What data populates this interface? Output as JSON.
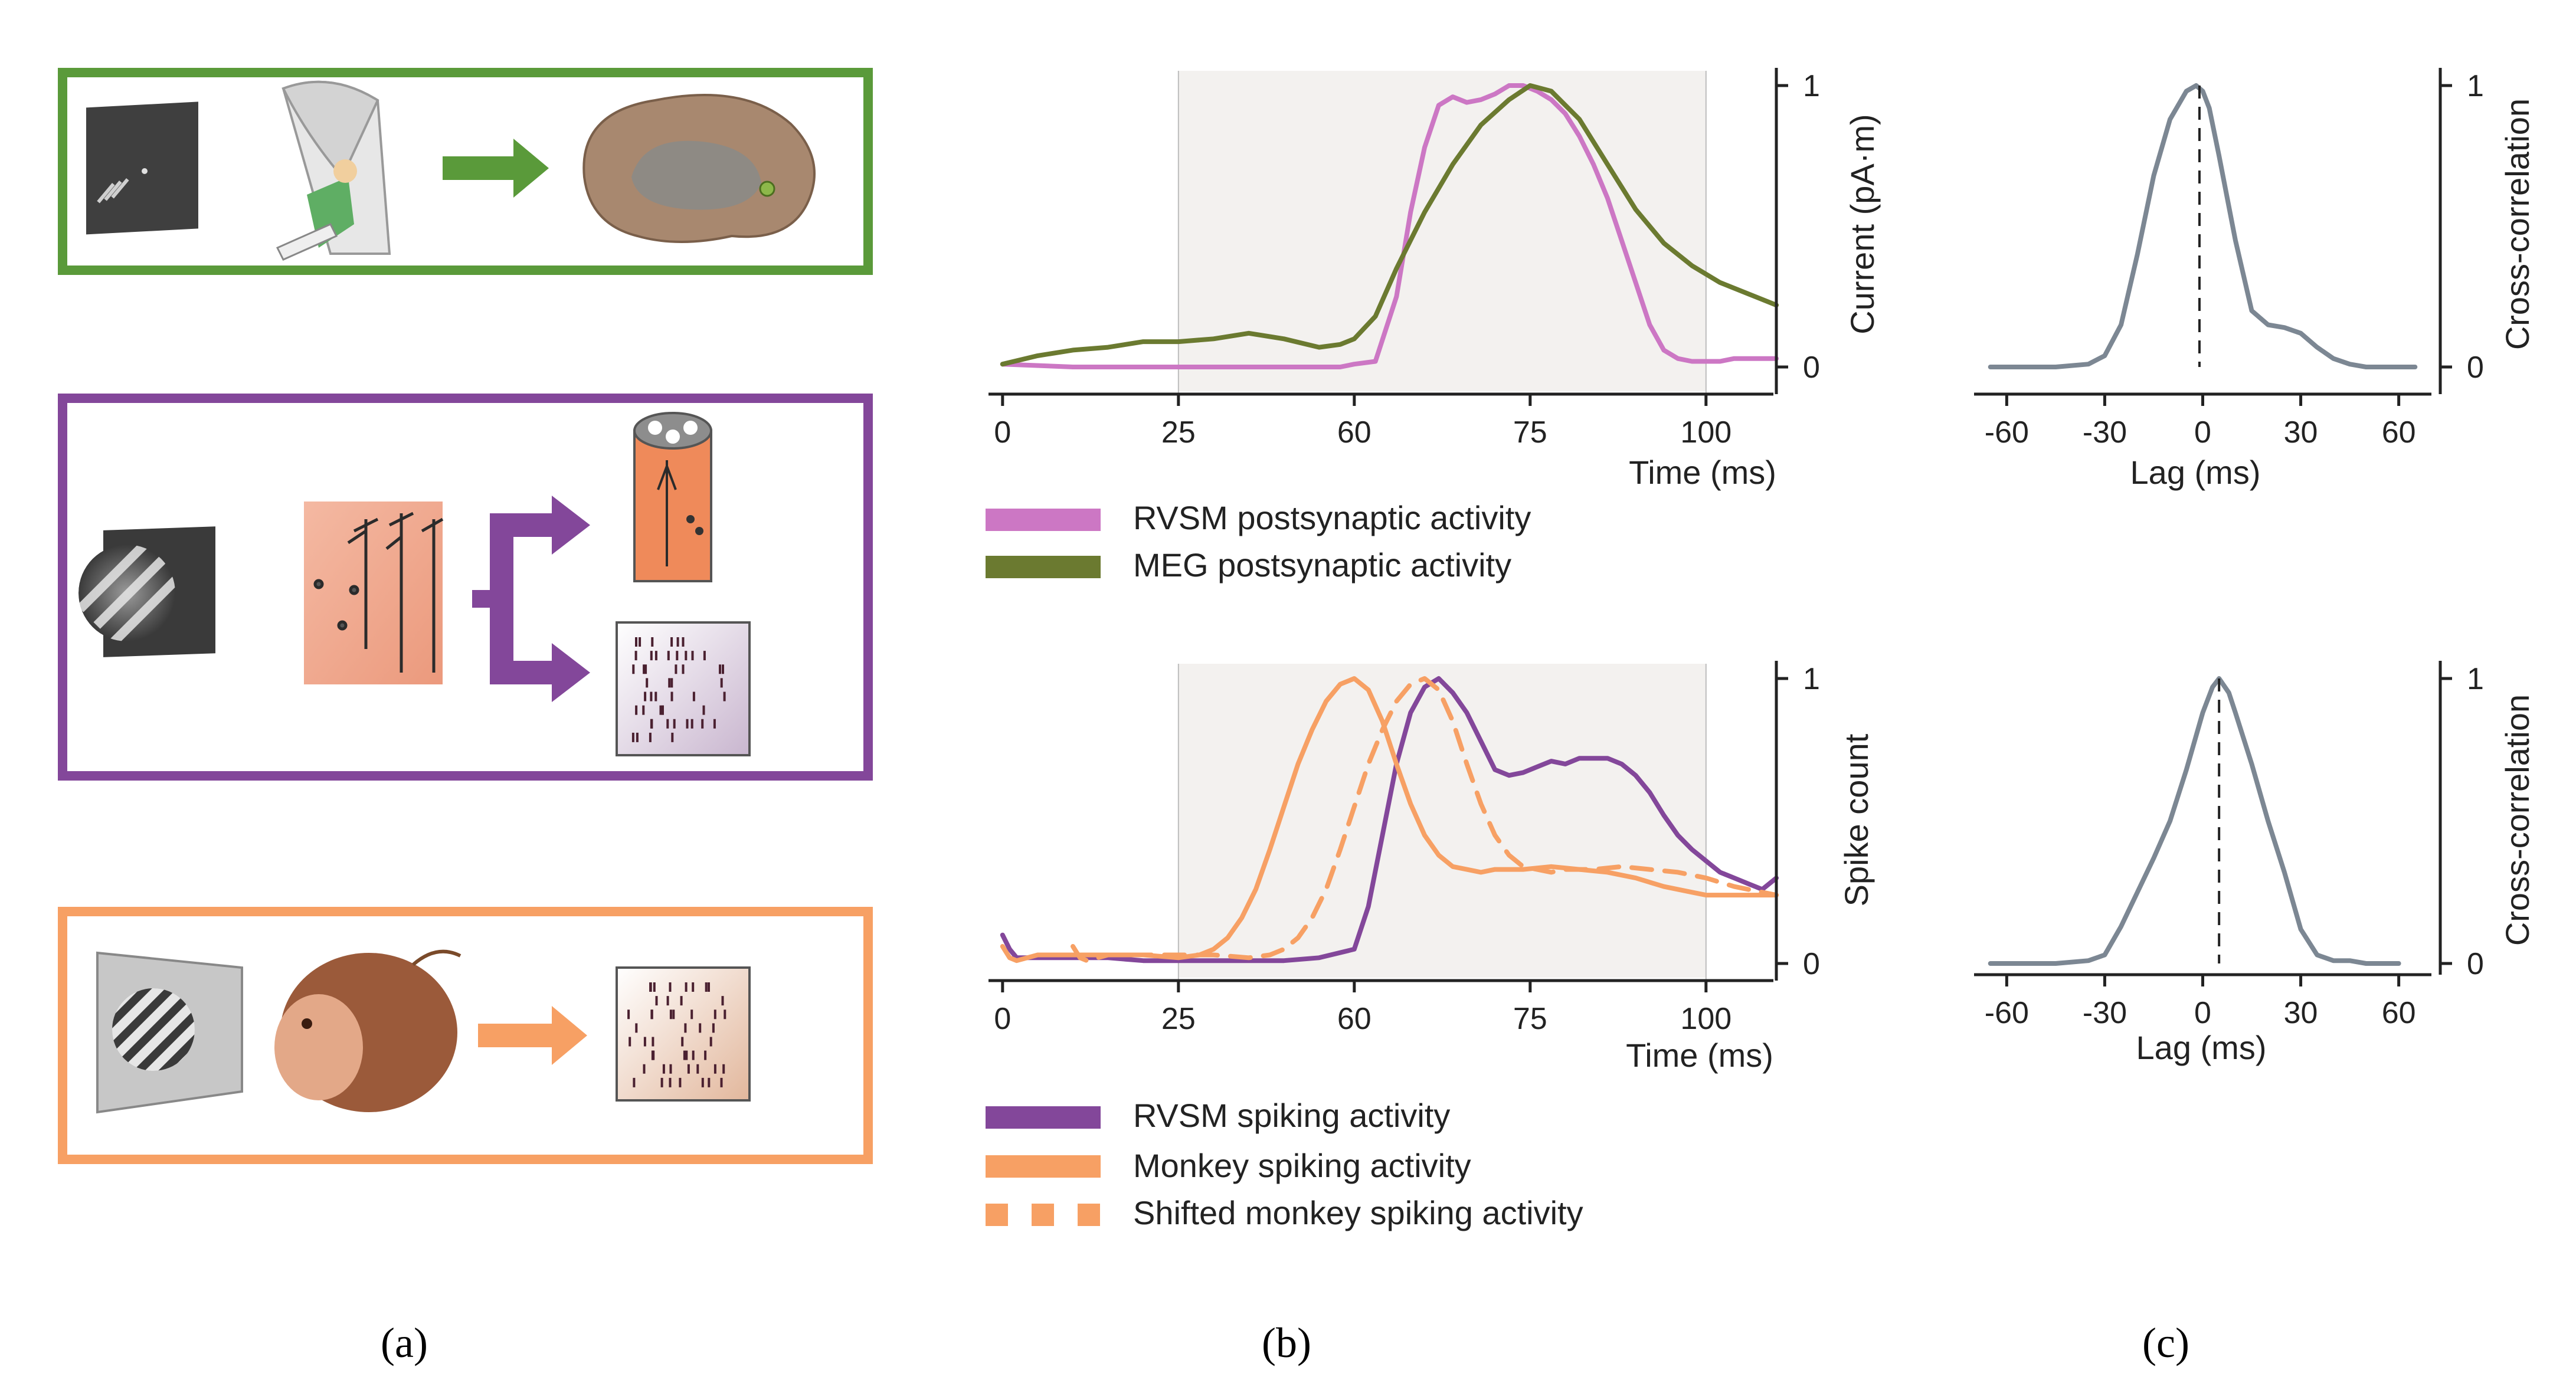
{
  "panel_labels": [
    "(a)",
    "(b)",
    "(c)"
  ],
  "colors": {
    "green": "#5a9a3a",
    "purple": "#83479a",
    "orange": "#f7a064",
    "pink": "#cc77c4",
    "olive": "#6b7a30",
    "gray_line": "#7c8793",
    "window_shade": "#f3f1ef"
  },
  "chart_data": [
    {
      "type": "line",
      "xlabel": "Time (ms)",
      "ylabel": "Current (pA·m)",
      "xticks": [
        "0",
        "25",
        "60",
        "75",
        "100"
      ],
      "yticks": [
        "0",
        "1"
      ],
      "xlim": [
        0,
        110
      ],
      "ylim": [
        0,
        1
      ],
      "shaded_window": [
        25,
        100
      ],
      "legend": [
        "RVSM postsynaptic activity",
        "MEG postsynaptic activity"
      ],
      "series": [
        {
          "name": "RVSM postsynaptic activity",
          "color": "#cc77c4",
          "style": "solid",
          "x": [
            0,
            10,
            20,
            30,
            40,
            45,
            48,
            50,
            53,
            56,
            58,
            60,
            62,
            64,
            66,
            68,
            70,
            72,
            74,
            76,
            78,
            80,
            82,
            84,
            86,
            88,
            90,
            92,
            94,
            96,
            98,
            100,
            102,
            104,
            106,
            108,
            110
          ],
          "y": [
            0.01,
            0.0,
            0.0,
            0.0,
            0.0,
            0.0,
            0.0,
            0.01,
            0.02,
            0.25,
            0.55,
            0.78,
            0.93,
            0.96,
            0.94,
            0.95,
            0.97,
            1.0,
            1.0,
            0.98,
            0.95,
            0.9,
            0.82,
            0.72,
            0.6,
            0.45,
            0.3,
            0.15,
            0.06,
            0.03,
            0.02,
            0.02,
            0.02,
            0.03,
            0.03,
            0.03,
            0.03
          ]
        },
        {
          "name": "MEG postsynaptic activity",
          "color": "#6b7a30",
          "style": "solid",
          "x": [
            0,
            5,
            10,
            15,
            20,
            25,
            30,
            35,
            40,
            45,
            48,
            50,
            53,
            56,
            60,
            64,
            68,
            72,
            75,
            78,
            82,
            86,
            90,
            94,
            98,
            102,
            106,
            110
          ],
          "y": [
            0.01,
            0.04,
            0.06,
            0.07,
            0.09,
            0.09,
            0.1,
            0.12,
            0.1,
            0.07,
            0.08,
            0.1,
            0.18,
            0.35,
            0.55,
            0.72,
            0.86,
            0.95,
            1.0,
            0.98,
            0.88,
            0.72,
            0.56,
            0.44,
            0.36,
            0.3,
            0.26,
            0.22
          ]
        }
      ]
    },
    {
      "type": "line",
      "xlabel": "Time (ms)",
      "ylabel": "Spike count",
      "xticks": [
        "0",
        "25",
        "60",
        "75",
        "100"
      ],
      "yticks": [
        "0",
        "1"
      ],
      "xlim": [
        0,
        110
      ],
      "ylim": [
        0,
        1
      ],
      "shaded_window": [
        25,
        100
      ],
      "legend": [
        "RVSM spiking activity",
        "Monkey spiking activity",
        "Shifted monkey spiking activity"
      ],
      "series": [
        {
          "name": "RVSM spiking activity",
          "color": "#83479a",
          "style": "solid",
          "x": [
            0,
            1,
            2,
            5,
            10,
            15,
            20,
            25,
            30,
            35,
            40,
            45,
            50,
            52,
            54,
            56,
            58,
            60,
            62,
            64,
            66,
            68,
            70,
            72,
            74,
            76,
            78,
            80,
            82,
            84,
            86,
            88,
            90,
            92,
            94,
            96,
            98,
            100,
            102,
            104,
            106,
            108,
            110
          ],
          "y": [
            0.1,
            0.05,
            0.02,
            0.02,
            0.02,
            0.02,
            0.01,
            0.01,
            0.01,
            0.01,
            0.01,
            0.02,
            0.05,
            0.2,
            0.45,
            0.7,
            0.88,
            0.97,
            1.0,
            0.95,
            0.88,
            0.78,
            0.68,
            0.66,
            0.67,
            0.69,
            0.71,
            0.7,
            0.72,
            0.72,
            0.72,
            0.7,
            0.66,
            0.6,
            0.52,
            0.45,
            0.4,
            0.36,
            0.32,
            0.3,
            0.28,
            0.26,
            0.3
          ]
        },
        {
          "name": "Monkey spiking activity",
          "color": "#f7a064",
          "style": "solid",
          "x": [
            0,
            1,
            2,
            5,
            10,
            15,
            20,
            25,
            28,
            30,
            32,
            34,
            36,
            38,
            40,
            42,
            44,
            46,
            48,
            50,
            52,
            54,
            56,
            58,
            60,
            62,
            64,
            66,
            68,
            70,
            74,
            78,
            82,
            86,
            90,
            94,
            98,
            100,
            104,
            108,
            110
          ],
          "y": [
            0.06,
            0.02,
            0.01,
            0.03,
            0.03,
            0.03,
            0.03,
            0.02,
            0.03,
            0.05,
            0.09,
            0.16,
            0.26,
            0.4,
            0.55,
            0.7,
            0.82,
            0.92,
            0.98,
            1.0,
            0.96,
            0.85,
            0.7,
            0.56,
            0.45,
            0.38,
            0.34,
            0.33,
            0.32,
            0.33,
            0.33,
            0.34,
            0.33,
            0.32,
            0.3,
            0.27,
            0.25,
            0.24,
            0.24,
            0.24,
            0.24
          ]
        },
        {
          "name": "Shifted monkey spiking activity",
          "color": "#f7a064",
          "style": "dashed",
          "x": [
            10,
            11,
            12,
            15,
            20,
            25,
            30,
            35,
            38,
            40,
            42,
            44,
            46,
            48,
            50,
            52,
            54,
            56,
            58,
            60,
            62,
            64,
            66,
            68,
            70,
            72,
            74,
            76,
            78,
            80,
            84,
            88,
            92,
            96,
            100,
            104,
            108,
            110
          ],
          "y": [
            0.06,
            0.02,
            0.01,
            0.03,
            0.03,
            0.03,
            0.03,
            0.02,
            0.03,
            0.05,
            0.09,
            0.16,
            0.26,
            0.4,
            0.55,
            0.7,
            0.82,
            0.92,
            0.98,
            1.0,
            0.96,
            0.85,
            0.7,
            0.56,
            0.45,
            0.38,
            0.34,
            0.33,
            0.32,
            0.33,
            0.33,
            0.34,
            0.33,
            0.32,
            0.3,
            0.27,
            0.25,
            0.24
          ]
        }
      ]
    },
    {
      "type": "line",
      "xlabel": "Lag (ms)",
      "ylabel": "Cross-correlation",
      "xticks": [
        "-60",
        "-30",
        "0",
        "30",
        "60"
      ],
      "yticks": [
        "0",
        "1"
      ],
      "xlim": [
        -65,
        65
      ],
      "ylim": [
        0,
        1
      ],
      "peak_lag": -1,
      "series": [
        {
          "name": "",
          "color": "#7c8793",
          "style": "solid",
          "x": [
            -65,
            -55,
            -45,
            -35,
            -30,
            -25,
            -20,
            -15,
            -10,
            -5,
            -2,
            0,
            2,
            5,
            10,
            15,
            20,
            25,
            30,
            35,
            40,
            45,
            50,
            55,
            60,
            65
          ],
          "y": [
            0.0,
            0.0,
            0.0,
            0.01,
            0.04,
            0.15,
            0.4,
            0.68,
            0.88,
            0.98,
            1.0,
            0.98,
            0.92,
            0.75,
            0.45,
            0.2,
            0.15,
            0.14,
            0.12,
            0.07,
            0.03,
            0.01,
            0.0,
            0.0,
            0.0,
            0.0
          ]
        }
      ]
    },
    {
      "type": "line",
      "xlabel": "Lag (ms)",
      "ylabel": "Cross-correlation",
      "xticks": [
        "-60",
        "-30",
        "0",
        "30",
        "60"
      ],
      "yticks": [
        "0",
        "1"
      ],
      "xlim": [
        -65,
        65
      ],
      "ylim": [
        0,
        1
      ],
      "peak_lag": 5,
      "series": [
        {
          "name": "",
          "color": "#7c8793",
          "style": "solid",
          "x": [
            -65,
            -55,
            -45,
            -35,
            -30,
            -25,
            -20,
            -15,
            -10,
            -5,
            0,
            3,
            5,
            8,
            10,
            15,
            20,
            25,
            30,
            35,
            40,
            45,
            50,
            55,
            60
          ],
          "y": [
            0.0,
            0.0,
            0.0,
            0.01,
            0.03,
            0.13,
            0.25,
            0.37,
            0.5,
            0.68,
            0.88,
            0.97,
            1.0,
            0.95,
            0.88,
            0.7,
            0.5,
            0.32,
            0.12,
            0.03,
            0.01,
            0.01,
            0.0,
            0.0,
            0.0
          ]
        }
      ]
    }
  ]
}
